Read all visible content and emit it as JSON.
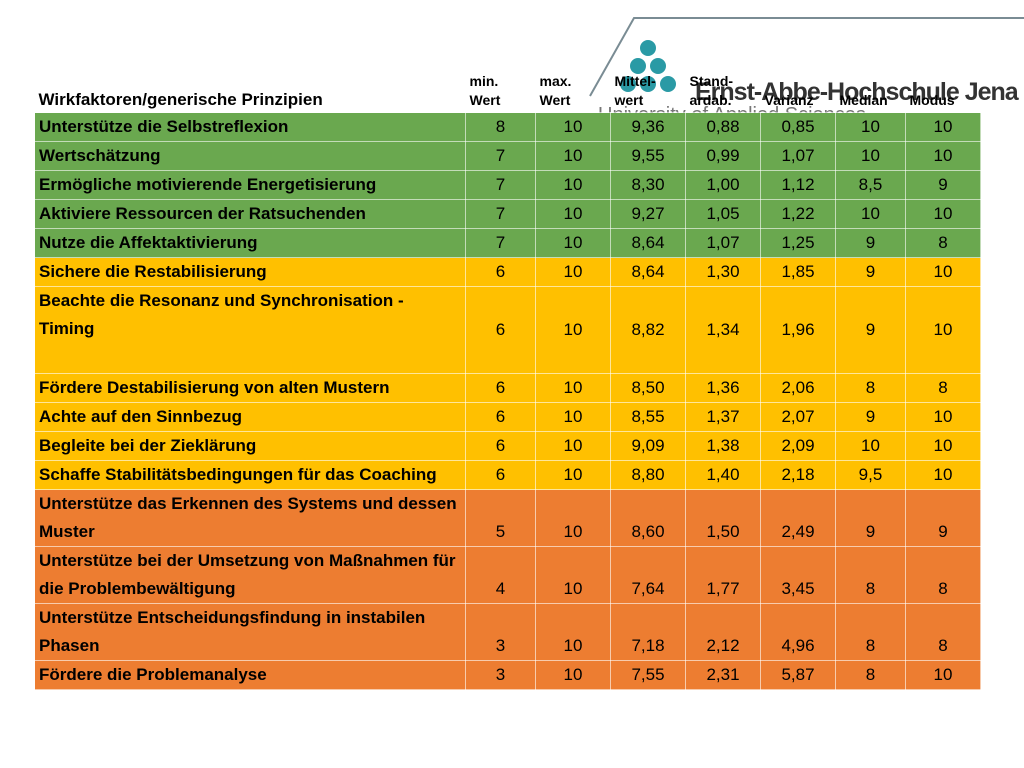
{
  "header": {
    "logo_name": "Ernst-Abbe-Hochschule Jena",
    "logo_sub": "University of Applied Sciences"
  },
  "table": {
    "columns": [
      "Wirkfaktoren/generische Prinzipien",
      "min.\nWert",
      "max.\nWert",
      "Mittel-\nwert",
      "Stand-\nardab.",
      "Varianz",
      "Median",
      "Modus"
    ],
    "groups": [
      {
        "color": "#6aa84f",
        "rows": [
          [
            "Unterstütze die Selbstreflexion",
            "8",
            "10",
            "9,36",
            "0,88",
            "0,85",
            "10",
            "10"
          ],
          [
            "Wertschätzung",
            "7",
            "10",
            "9,55",
            "0,99",
            "1,07",
            "10",
            "10"
          ],
          [
            "Ermögliche motivierende Energetisierung",
            "7",
            "10",
            "8,30",
            "1,00",
            "1,12",
            "8,5",
            "9"
          ],
          [
            "Aktiviere Ressourcen der Ratsuchenden",
            "7",
            "10",
            "9,27",
            "1,05",
            "1,22",
            "10",
            "10"
          ],
          [
            "Nutze die Affektaktivierung",
            "7",
            "10",
            "8,64",
            "1,07",
            "1,25",
            "9",
            "8"
          ]
        ]
      },
      {
        "color": "#ffc000",
        "rows": [
          [
            "Sichere die Restabilisierung",
            "6",
            "10",
            "8,64",
            "1,30",
            "1,85",
            "9",
            "10"
          ],
          [
            "Beachte die Resonanz und Synchronisation - Timing",
            "6",
            "10",
            "8,82",
            "1,34",
            "1,96",
            "9",
            "10"
          ],
          [
            "Fördere Destabilisierung von alten Mustern",
            "6",
            "10",
            "8,50",
            "1,36",
            "2,06",
            "8",
            "8"
          ],
          [
            "Achte auf den Sinnbezug",
            "6",
            "10",
            "8,55",
            "1,37",
            "2,07",
            "9",
            "10"
          ],
          [
            "Begleite bei der Zieklärung",
            "6",
            "10",
            "9,09",
            "1,38",
            "2,09",
            "10",
            "10"
          ],
          [
            "Schaffe Stabilitätsbedingungen für das Coaching",
            "6",
            "10",
            "8,80",
            "1,40",
            "2,18",
            "9,5",
            "10"
          ]
        ]
      },
      {
        "color": "#ed7d31",
        "rows": [
          [
            "Unterstütze das Erkennen des Systems und dessen Muster",
            "5",
            "10",
            "8,60",
            "1,50",
            "2,49",
            "9",
            "9"
          ],
          [
            "Unterstütze bei der Umsetzung von Maßnahmen für die Problembewältigung",
            "4",
            "10",
            "7,64",
            "1,77",
            "3,45",
            "8",
            "8"
          ],
          [
            "Unterstütze Entscheidungsfindung in instabilen Phasen",
            "3",
            "10",
            "7,18",
            "2,12",
            "4,96",
            "8",
            "8"
          ],
          [
            "Fördere die Problemanalyse",
            "3",
            "10",
            "7,55",
            "2,31",
            "5,87",
            "8",
            "10"
          ]
        ]
      }
    ]
  }
}
